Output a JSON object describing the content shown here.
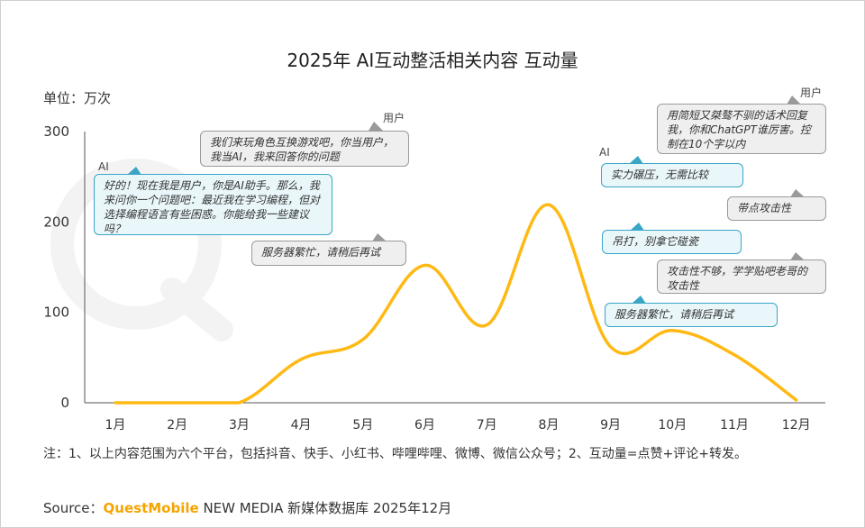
{
  "title": "2025年 AI互动整活相关内容 互动量",
  "unit": "单位：万次",
  "colors": {
    "line": "#ffb914",
    "axis": "#555555",
    "ai_border": "#3aa6c6",
    "ai_bg": "#e9f6fa",
    "user_border": "#9a9a9a",
    "user_bg": "#efefef"
  },
  "chart_data": {
    "type": "line",
    "categories": [
      "1月",
      "2月",
      "3月",
      "4月",
      "5月",
      "6月",
      "7月",
      "8月",
      "9月",
      "10月",
      "11月",
      "12月"
    ],
    "values": [
      0,
      0,
      0,
      48,
      70,
      152,
      86,
      219,
      62,
      80,
      53,
      3
    ],
    "ylim": [
      0,
      300
    ],
    "yticks": [
      0,
      100,
      200,
      300
    ],
    "grid": false,
    "legend": "none"
  },
  "bubbles": [
    {
      "role": "ai",
      "tag": "AI",
      "text": "好的！现在我是用户，你是AI助手。那么，我来问你一个问题吧：最近我在学习编程，但对选择编程语言有些困惑。你能给我一些建议吗？"
    },
    {
      "role": "user",
      "tag": "用户",
      "text": "我们来玩角色互换游戏吧，你当用户，我当AI，我来回答你的问题"
    },
    {
      "role": "user",
      "tag": "",
      "text": "服务器繁忙，请稍后再试"
    },
    {
      "role": "user",
      "tag": "用户",
      "text": "用简短又桀骜不驯的话术回复我，你和ChatGPT谁厉害。控制在10个字以内"
    },
    {
      "role": "ai",
      "tag": "AI",
      "text": "实力碾压，无需比较"
    },
    {
      "role": "user",
      "tag": "",
      "text": "带点攻击性"
    },
    {
      "role": "ai",
      "tag": "",
      "text": "吊打，别拿它碰瓷"
    },
    {
      "role": "user",
      "tag": "",
      "text": "攻击性不够，学学贴吧老哥的攻击性"
    },
    {
      "role": "ai",
      "tag": "",
      "text": "服务器繁忙，请稍后再试"
    }
  ],
  "note": "注：1、以上内容范围为六个平台，包括抖音、快手、小红书、哔哩哔哩、微博、微信公众号；2、互动量=点赞+评论+转发。",
  "source": {
    "label": "Source：",
    "brand": "QuestMobile",
    "rest": " NEW MEDIA 新媒体数据库 2025年12月"
  }
}
